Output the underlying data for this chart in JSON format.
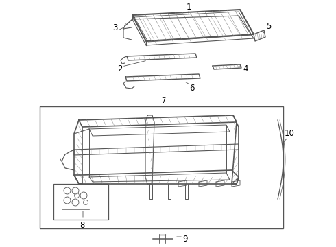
{
  "bg_color": "#ffffff",
  "line_color": "#555555",
  "label_color": "#000000",
  "fig_width": 4.9,
  "fig_height": 3.6,
  "dpi": 100
}
